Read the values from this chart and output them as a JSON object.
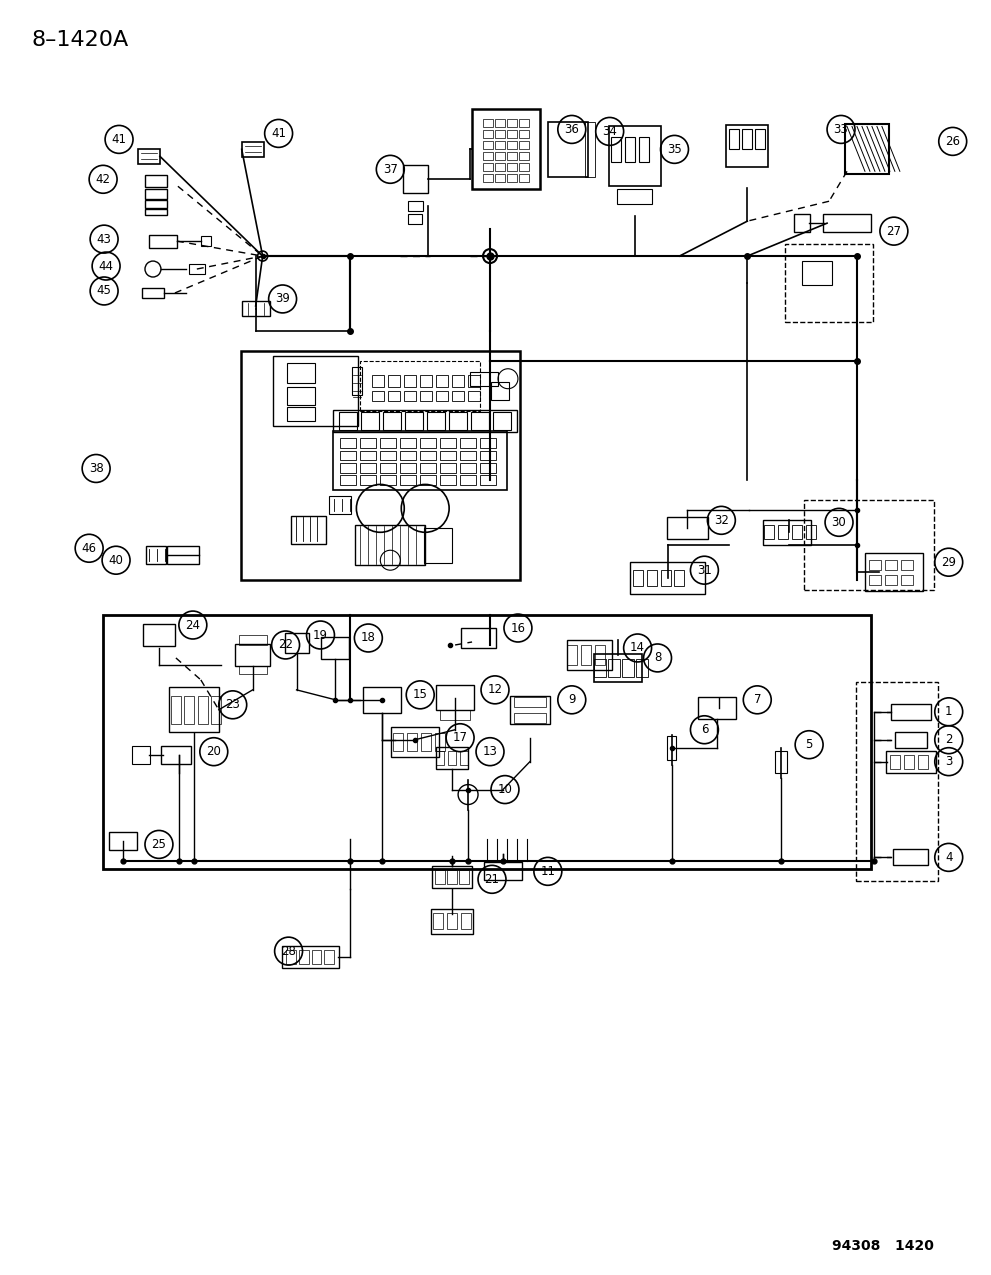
{
  "title": "8–1420A",
  "footer": "94308   1420",
  "bg_color": "#ffffff",
  "lc": "#000000",
  "fig_w": 9.91,
  "fig_h": 12.75,
  "dpi": 100,
  "title_fs": 16,
  "footer_fs": 10
}
